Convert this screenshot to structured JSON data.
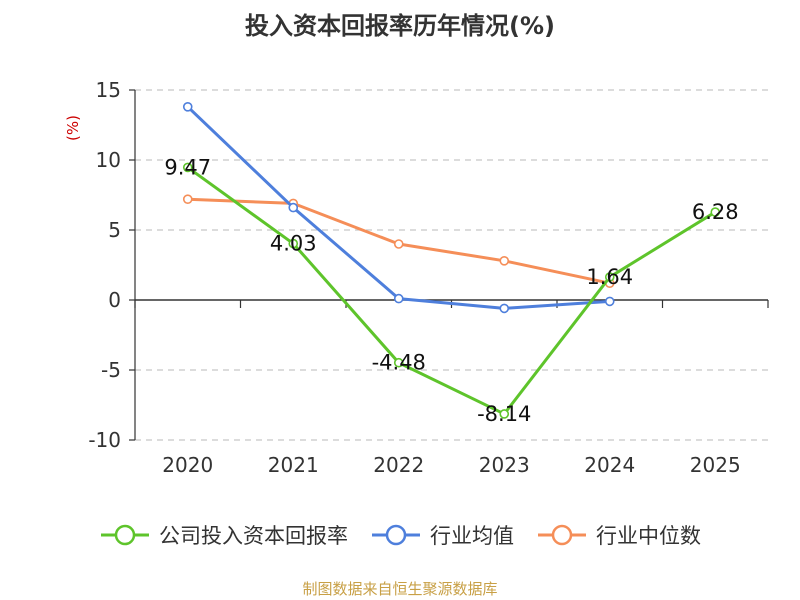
{
  "title": "投入资本回报率历年情况(%)",
  "source": "制图数据来自恒生聚源数据库",
  "chart_data": {
    "type": "line",
    "title": "投入资本回报率历年情况(%)",
    "ylabel": "(%)",
    "xlabel": "",
    "categories": [
      "2020",
      "2021",
      "2022",
      "2023",
      "2024",
      "2025"
    ],
    "ylim": [
      -10,
      15
    ],
    "yticks": [
      -10,
      -5,
      0,
      5,
      10,
      15
    ],
    "grid": true,
    "legend_position": "bottom",
    "series": [
      {
        "name": "公司投入资本回报率",
        "color": "#5ec42b",
        "values": [
          9.47,
          4.03,
          -4.48,
          -8.14,
          1.64,
          6.28
        ],
        "labels": [
          "9.47",
          "4.03",
          "-4.48",
          "-8.14",
          "1.64",
          "6.28"
        ]
      },
      {
        "name": "行业均值",
        "color": "#4e7fdc",
        "values": [
          13.8,
          6.6,
          0.1,
          -0.6,
          -0.1,
          null
        ]
      },
      {
        "name": "行业中位数",
        "color": "#f58e58",
        "values": [
          7.2,
          6.9,
          4.0,
          2.8,
          1.2,
          null
        ]
      }
    ]
  }
}
